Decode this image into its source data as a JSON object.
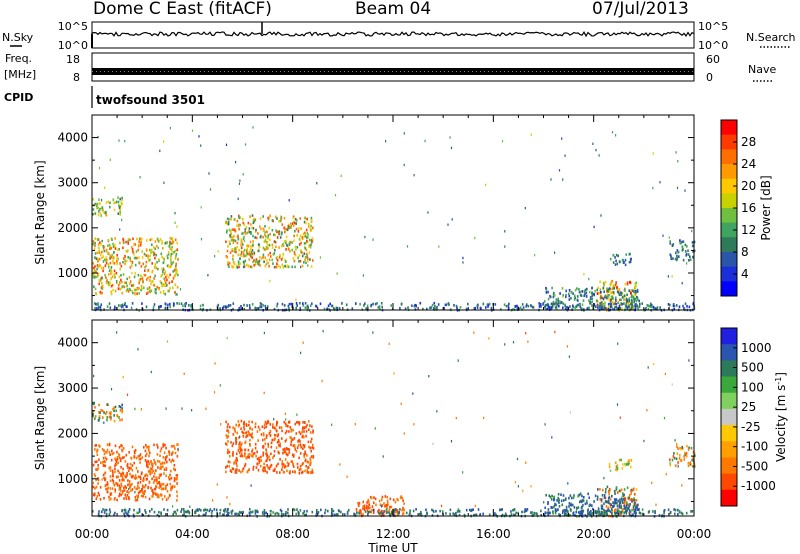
{
  "header": {
    "station": "Dome C East (fitACF)",
    "beam": "Beam 04",
    "date": "07/Jul/2013"
  },
  "summary": {
    "nsky_label": "N.Sky",
    "nsearch_label": "N.Search",
    "freq_label_1": "Freq.",
    "freq_label_2": "[MHz]",
    "nave_label": "Nave",
    "cpid_label": "CPID",
    "nsky_ticks": [
      "10^5",
      "10^0"
    ],
    "nsearch_ticks": [
      "10^5",
      "10^0"
    ],
    "freq_ticks": [
      "18",
      "8"
    ],
    "nave_ticks": [
      "60",
      "0"
    ],
    "cpid_text": "twofsound 3501"
  },
  "chart_data": [
    {
      "type": "heatmap",
      "name": "power",
      "ylabel": "Slant Range [km]",
      "xlabel": "",
      "colorbar_label": "Power [dB]",
      "xlim": [
        0,
        24
      ],
      "ylim": [
        180,
        4500
      ],
      "y_ticks": [
        1000,
        2000,
        3000,
        4000
      ],
      "colorbar_ticks": [
        "28",
        "24",
        "20",
        "16",
        "12",
        "8",
        "4"
      ],
      "colorbar_colors": [
        "#ff0000",
        "#ff3a00",
        "#ff6e00",
        "#ff9a00",
        "#ffc800",
        "#c8d200",
        "#6fc040",
        "#3fa45f",
        "#2e7a5a",
        "#2a55a8",
        "#1a2fd8",
        "#0000ff"
      ],
      "scatter_regions": [
        {
          "t0": 0.0,
          "t1": 3.4,
          "r0": 550,
          "r1": 1800,
          "v0": 10,
          "v1": 30
        },
        {
          "t0": 0.0,
          "t1": 1.2,
          "r0": 2300,
          "r1": 2700,
          "v0": 8,
          "v1": 22
        },
        {
          "t0": 5.3,
          "t1": 8.8,
          "r0": 1150,
          "r1": 2300,
          "v0": 8,
          "v1": 30
        },
        {
          "t0": 20.1,
          "t1": 21.7,
          "r0": 200,
          "r1": 850,
          "v0": 14,
          "v1": 32
        },
        {
          "t0": 18.0,
          "t1": 21.8,
          "r0": 200,
          "r1": 700,
          "v0": 3,
          "v1": 14
        },
        {
          "t0": 20.6,
          "t1": 21.5,
          "r0": 1200,
          "r1": 1450,
          "v0": 4,
          "v1": 12
        },
        {
          "t0": 23.0,
          "t1": 24.0,
          "r0": 1300,
          "r1": 1750,
          "v0": 4,
          "v1": 12
        },
        {
          "t0": 0.0,
          "t1": 24.0,
          "r0": 200,
          "r1": 360,
          "v0": 2,
          "v1": 12
        }
      ]
    },
    {
      "type": "heatmap",
      "name": "velocity",
      "ylabel": "Slant Range [km]",
      "xlabel": "Time UT",
      "colorbar_label": "Velocity [m s^-1]",
      "xlim": [
        0,
        24
      ],
      "ylim": [
        180,
        4500
      ],
      "x_ticks": [
        "00:00",
        "04:00",
        "08:00",
        "12:00",
        "16:00",
        "20:00",
        "00:00"
      ],
      "y_ticks": [
        1000,
        2000,
        3000,
        4000
      ],
      "colorbar_ticks": [
        "1000",
        "500",
        "100",
        "25",
        "-25",
        "-100",
        "-500",
        "-1000"
      ],
      "colorbar_colors": [
        "#2020e0",
        "#2a55b0",
        "#2d7a5a",
        "#3aa83a",
        "#80d060",
        "#c8c8c8",
        "#ffc800",
        "#ffa000",
        "#ff7800",
        "#ff4800",
        "#ff0000"
      ],
      "scatter_regions": [
        {
          "t0": 0.0,
          "t1": 3.4,
          "r0": 550,
          "r1": 1800,
          "v0": -200,
          "v1": -80
        },
        {
          "t0": 0.0,
          "t1": 1.2,
          "r0": 2300,
          "r1": 2700,
          "v0": -120,
          "v1": 150
        },
        {
          "t0": 5.3,
          "t1": 8.8,
          "r0": 1150,
          "r1": 2300,
          "v0": -250,
          "v1": -80
        },
        {
          "t0": 20.1,
          "t1": 21.7,
          "r0": 200,
          "r1": 850,
          "v0": -200,
          "v1": 150
        },
        {
          "t0": 18.0,
          "t1": 21.8,
          "r0": 200,
          "r1": 700,
          "v0": 20,
          "v1": 300
        },
        {
          "t0": 20.6,
          "t1": 21.5,
          "r0": 1200,
          "r1": 1450,
          "v0": -30,
          "v1": 30
        },
        {
          "t0": 23.0,
          "t1": 24.0,
          "r0": 1300,
          "r1": 1750,
          "v0": -150,
          "v1": 100
        },
        {
          "t0": 10.5,
          "t1": 12.5,
          "r0": 200,
          "r1": 650,
          "v0": -200,
          "v1": -100
        },
        {
          "t0": 0.0,
          "t1": 24.0,
          "r0": 200,
          "r1": 360,
          "v0": 20,
          "v1": 200
        }
      ]
    }
  ]
}
